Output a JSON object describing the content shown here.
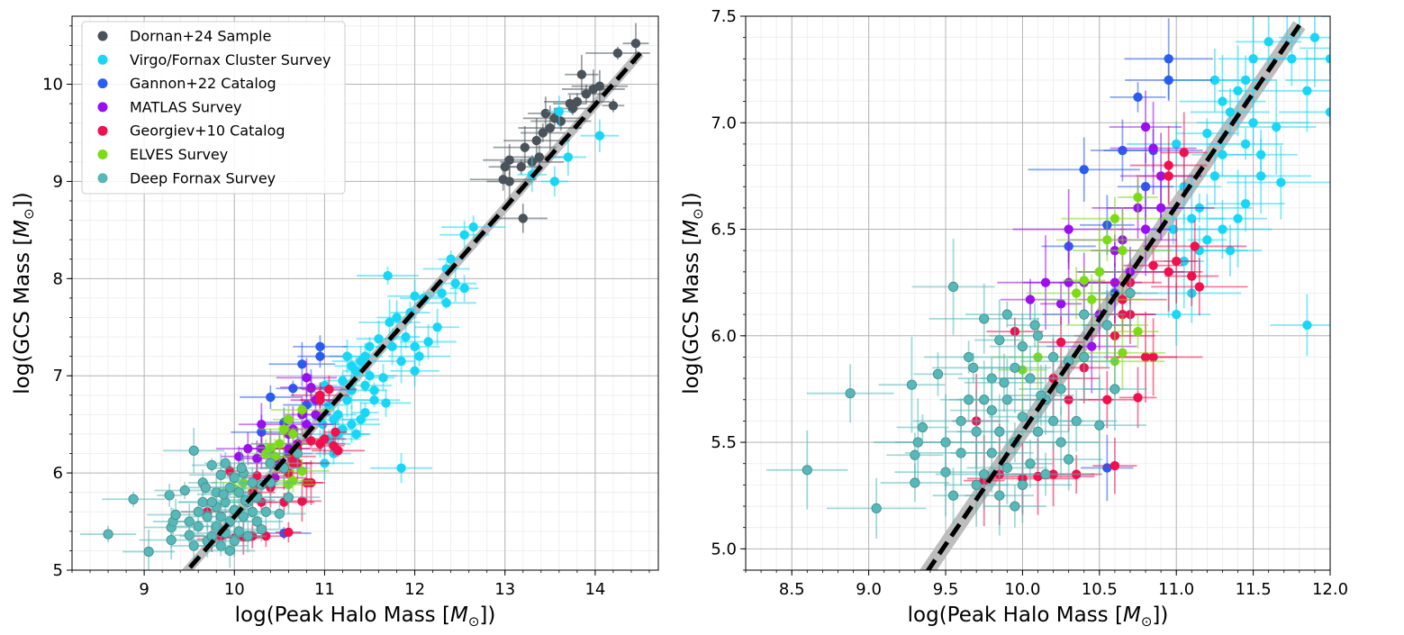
{
  "chart_data": [
    {
      "type": "scatter",
      "panel": "left",
      "xlabel_text": "log(Peak Halo Mass [",
      "xlabel_unit": "M",
      "xlabel_end": "])",
      "ylabel_text": "log(GCS Mass [",
      "ylabel_unit": "M",
      "ylabel_end": "])",
      "xlim": [
        8.2,
        14.7
      ],
      "ylim": [
        5.0,
        10.7
      ],
      "xticks": [
        "9",
        "10",
        "11",
        "12",
        "13",
        "14"
      ],
      "xtick_values": [
        9,
        10,
        11,
        12,
        13,
        14
      ],
      "yticks": [
        "5",
        "6",
        "7",
        "8",
        "9",
        "10"
      ],
      "ytick_values": [
        5,
        6,
        7,
        8,
        9,
        10
      ],
      "fit_line": {
        "slope": 1.06,
        "intercept": -5.05,
        "x_range": [
          9.35,
          14.5
        ],
        "style": "dashed black with grey band"
      },
      "legend_position": "upper-left",
      "legend": [
        {
          "name": "Dornan+24 Sample",
          "color": "#4a525a"
        },
        {
          "name": "Virgo/Fornax Cluster Survey",
          "color": "#18d6f5"
        },
        {
          "name": "Gannon+22 Catalog",
          "color": "#2a5cf0"
        },
        {
          "name": "MATLAS Survey",
          "color": "#9a0fef"
        },
        {
          "name": "Georgiev+10 Catalog",
          "color": "#f0104e"
        },
        {
          "name": "ELVES Survey",
          "color": "#7bdc16"
        },
        {
          "name": "Deep Fornax Survey",
          "color": "#58b8b8"
        }
      ],
      "series": [
        {
          "name": "Dornan+24 Sample",
          "color": "#4a525a",
          "points": [
            [
              14.45,
              10.42
            ],
            [
              14.25,
              10.32
            ],
            [
              14.2,
              9.78
            ],
            [
              14.05,
              9.98
            ],
            [
              13.98,
              9.95
            ],
            [
              13.9,
              9.9
            ],
            [
              13.85,
              10.1
            ],
            [
              13.8,
              9.82
            ],
            [
              13.75,
              9.75
            ],
            [
              13.72,
              9.8
            ],
            [
              13.62,
              9.62
            ],
            [
              13.55,
              9.65
            ],
            [
              13.5,
              9.55
            ],
            [
              13.45,
              9.7
            ],
            [
              13.42,
              9.5
            ],
            [
              13.38,
              9.25
            ],
            [
              13.35,
              9.42
            ],
            [
              13.3,
              9.2
            ],
            [
              13.22,
              9.35
            ],
            [
              13.18,
              9.15
            ],
            [
              13.05,
              9.22
            ],
            [
              13.0,
              9.15
            ],
            [
              12.98,
              9.02
            ],
            [
              13.05,
              9.0
            ],
            [
              13.2,
              8.62
            ]
          ]
        },
        {
          "name": "Virgo/Fornax Cluster Survey",
          "color": "#18d6f5",
          "points": [
            [
              14.05,
              9.47
            ],
            [
              13.7,
              9.25
            ],
            [
              13.55,
              9.0
            ],
            [
              13.6,
              9.72
            ],
            [
              13.3,
              9.07
            ],
            [
              12.65,
              8.53
            ],
            [
              12.55,
              8.45
            ],
            [
              12.4,
              8.2
            ],
            [
              12.35,
              8.1
            ],
            [
              12.55,
              7.9
            ],
            [
              12.3,
              7.85
            ],
            [
              12.1,
              7.8
            ],
            [
              12.0,
              7.82
            ],
            [
              11.95,
              7.65
            ],
            [
              11.7,
              8.03
            ],
            [
              11.8,
              7.6
            ],
            [
              11.72,
              7.55
            ],
            [
              11.6,
              7.38
            ],
            [
              11.5,
              7.3
            ],
            [
              11.45,
              7.2
            ],
            [
              11.4,
              7.15
            ],
            [
              11.3,
              7.1
            ],
            [
              11.25,
              7.2
            ],
            [
              11.35,
              7.05
            ],
            [
              11.5,
              7.0
            ],
            [
              11.65,
              6.98
            ],
            [
              11.68,
              6.72
            ],
            [
              11.55,
              6.75
            ],
            [
              11.45,
              6.9
            ],
            [
              11.3,
              6.85
            ],
            [
              11.25,
              6.75
            ],
            [
              11.15,
              6.6
            ],
            [
              11.1,
              6.55
            ],
            [
              11.05,
              6.7
            ],
            [
              11.0,
              6.9
            ],
            [
              10.98,
              6.5
            ],
            [
              11.2,
              6.45
            ],
            [
              11.3,
              6.5
            ],
            [
              11.4,
              6.55
            ],
            [
              11.35,
              6.4
            ],
            [
              11.15,
              6.4
            ],
            [
              11.05,
              6.35
            ],
            [
              10.95,
              6.3
            ],
            [
              11.1,
              6.2
            ],
            [
              11.0,
              6.1
            ],
            [
              11.85,
              6.05
            ],
            [
              12.0,
              7.3
            ],
            [
              12.05,
              7.2
            ],
            [
              12.15,
              7.35
            ],
            [
              12.25,
              7.5
            ],
            [
              12.45,
              7.95
            ],
            [
              12.35,
              7.75
            ],
            [
              11.9,
              7.4
            ],
            [
              11.75,
              7.3
            ],
            [
              11.85,
              7.15
            ],
            [
              12.0,
              7.05
            ],
            [
              11.55,
              6.85
            ],
            [
              11.2,
              6.95
            ],
            [
              11.45,
              6.62
            ]
          ]
        },
        {
          "name": "Gannon+22 Catalog",
          "color": "#2a5cf0",
          "points": [
            [
              10.95,
              7.3
            ],
            [
              10.95,
              7.2
            ],
            [
              10.4,
              6.78
            ],
            [
              10.65,
              6.87
            ],
            [
              10.75,
              7.12
            ],
            [
              10.85,
              6.87
            ],
            [
              10.3,
              6.42
            ],
            [
              10.55,
              6.52
            ],
            [
              10.6,
              6.2
            ],
            [
              10.8,
              6.7
            ],
            [
              10.5,
              6.3
            ],
            [
              10.55,
              5.38
            ]
          ]
        },
        {
          "name": "MATLAS Survey",
          "color": "#9a0fef",
          "points": [
            [
              10.8,
              6.98
            ],
            [
              10.85,
              6.88
            ],
            [
              10.9,
              6.75
            ],
            [
              10.3,
              6.5
            ],
            [
              10.4,
              6.25
            ],
            [
              10.05,
              6.17
            ],
            [
              10.15,
              6.25
            ],
            [
              10.25,
              6.15
            ],
            [
              10.5,
              6.1
            ],
            [
              10.6,
              6.4
            ],
            [
              10.75,
              6.6
            ],
            [
              10.7,
              6.3
            ],
            [
              10.45,
              5.95
            ],
            [
              10.6,
              6.25
            ],
            [
              10.65,
              6.45
            ],
            [
              10.8,
              6.5
            ],
            [
              10.9,
              6.6
            ],
            [
              10.55,
              6.05
            ],
            [
              10.3,
              6.25
            ]
          ]
        },
        {
          "name": "Georgiev+10 Catalog",
          "color": "#f0104e",
          "points": [
            [
              10.35,
              5.35
            ],
            [
              10.2,
              5.35
            ],
            [
              10.1,
              5.34
            ],
            [
              10.0,
              5.33
            ],
            [
              9.85,
              5.35
            ],
            [
              9.75,
              5.32
            ],
            [
              9.7,
              5.6
            ],
            [
              10.55,
              5.7
            ],
            [
              10.6,
              5.39
            ],
            [
              10.75,
              5.71
            ],
            [
              10.8,
              5.9
            ],
            [
              10.85,
              5.9
            ],
            [
              10.6,
              6.0
            ],
            [
              10.65,
              6.1
            ],
            [
              10.7,
              6.1
            ],
            [
              10.7,
              6.25
            ],
            [
              10.85,
              6.33
            ],
            [
              10.95,
              6.3
            ],
            [
              11.1,
              6.28
            ],
            [
              11.15,
              6.23
            ],
            [
              10.95,
              6.75
            ],
            [
              11.05,
              6.86
            ],
            [
              10.95,
              6.8
            ],
            [
              10.4,
              5.85
            ],
            [
              10.3,
              5.7
            ],
            [
              10.2,
              5.8
            ],
            [
              9.95,
              6.02
            ],
            [
              10.25,
              5.97
            ],
            [
              10.65,
              6.17
            ],
            [
              11.0,
              6.35
            ],
            [
              11.12,
              6.42
            ]
          ]
        },
        {
          "name": "ELVES Survey",
          "color": "#7bdc16",
          "points": [
            [
              10.4,
              6.26
            ],
            [
              10.5,
              6.3
            ],
            [
              10.55,
              6.45
            ],
            [
              10.6,
              6.55
            ],
            [
              10.65,
              6.4
            ],
            [
              10.45,
              6.17
            ],
            [
              10.6,
              5.88
            ],
            [
              10.65,
              5.92
            ],
            [
              10.0,
              5.84
            ],
            [
              10.1,
              5.9
            ],
            [
              10.55,
              6.05
            ],
            [
              10.75,
              6.02
            ],
            [
              10.75,
              6.65
            ],
            [
              10.35,
              6.2
            ]
          ]
        },
        {
          "name": "Deep Fornax Survey",
          "color": "#58b8b8",
          "points": [
            [
              8.6,
              5.37
            ],
            [
              8.88,
              5.73
            ],
            [
              9.05,
              5.19
            ],
            [
              9.28,
              5.77
            ],
            [
              9.3,
              5.44
            ],
            [
              9.32,
              5.5
            ],
            [
              9.35,
              5.57
            ],
            [
              9.3,
              5.31
            ],
            [
              9.45,
              5.82
            ],
            [
              9.5,
              5.5
            ],
            [
              9.5,
              5.36
            ],
            [
              9.55,
              5.25
            ],
            [
              9.55,
              6.23
            ],
            [
              9.6,
              5.6
            ],
            [
              9.6,
              5.45
            ],
            [
              9.65,
              5.9
            ],
            [
              9.65,
              5.7
            ],
            [
              9.7,
              5.3
            ],
            [
              9.7,
              5.55
            ],
            [
              9.75,
              6.08
            ],
            [
              9.75,
              5.35
            ],
            [
              9.8,
              5.8
            ],
            [
              9.8,
              5.65
            ],
            [
              9.8,
              5.45
            ],
            [
              9.85,
              5.98
            ],
            [
              9.85,
              5.25
            ],
            [
              9.85,
              5.55
            ],
            [
              9.9,
              6.1
            ],
            [
              9.9,
              5.7
            ],
            [
              9.9,
              5.38
            ],
            [
              9.95,
              5.85
            ],
            [
              9.95,
              5.5
            ],
            [
              10.0,
              5.95
            ],
            [
              10.0,
              5.3
            ],
            [
              10.0,
              5.62
            ],
            [
              10.05,
              5.8
            ],
            [
              10.05,
              5.4
            ],
            [
              10.1,
              6.0
            ],
            [
              10.1,
              5.55
            ],
            [
              10.15,
              5.7
            ],
            [
              10.15,
              5.35
            ],
            [
              10.2,
              5.9
            ],
            [
              10.2,
              5.6
            ],
            [
              10.25,
              5.5
            ],
            [
              10.25,
              5.75
            ],
            [
              10.3,
              5.42
            ],
            [
              10.3,
              5.88
            ],
            [
              10.35,
              5.6
            ],
            [
              10.4,
              5.9
            ],
            [
              10.4,
              6.1
            ],
            [
              10.5,
              5.58
            ],
            [
              10.55,
              6.05
            ],
            [
              10.6,
              5.75
            ],
            [
              10.7,
              6.2
            ],
            [
              9.95,
              5.2
            ],
            [
              9.75,
              5.7
            ],
            [
              9.68,
              5.85
            ],
            [
              10.12,
              5.72
            ],
            [
              9.88,
              5.78
            ],
            [
              10.08,
              6.05
            ]
          ]
        }
      ]
    },
    {
      "type": "scatter",
      "panel": "right",
      "xlabel_text": "log(Peak Halo Mass [",
      "xlabel_unit": "M",
      "xlabel_end": "])",
      "ylabel_text": "log(GCS Mass [",
      "ylabel_unit": "M",
      "ylabel_end": "])",
      "xlim": [
        8.2,
        12.0
      ],
      "ylim": [
        4.9,
        7.5
      ],
      "xticks": [
        "8.5",
        "9.0",
        "9.5",
        "10.0",
        "10.5",
        "11.0",
        "11.5",
        "12.0"
      ],
      "xtick_values": [
        8.5,
        9.0,
        9.5,
        10.0,
        10.5,
        11.0,
        11.5,
        12.0
      ],
      "yticks": [
        "5.0",
        "5.5",
        "6.0",
        "6.5",
        "7.0",
        "7.5"
      ],
      "ytick_values": [
        5.0,
        5.5,
        6.0,
        6.5,
        7.0,
        7.5
      ],
      "fit_line": {
        "slope": 1.06,
        "intercept": -5.05,
        "x_range": [
          9.3,
          11.8
        ],
        "style": "dashed black with grey band"
      },
      "series_source": "same as left panel"
    }
  ]
}
